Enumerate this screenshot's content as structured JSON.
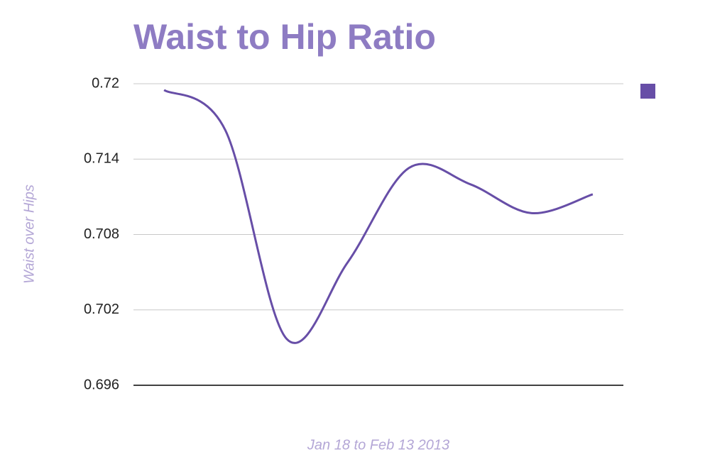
{
  "chart_data": {
    "type": "line",
    "title": "Waist to Hip Ratio",
    "y_label": "Waist over Hips",
    "x_label": "Jan 18 to Feb 13 2013",
    "categories": [
      null,
      null,
      null,
      null,
      null,
      null,
      null,
      null
    ],
    "series": [
      {
        "color": "#674ea7",
        "values": [
          0.7195,
          0.7163,
          0.6997,
          0.7058,
          0.7133,
          0.712,
          0.7097,
          0.7112
        ]
      }
    ],
    "ylim": [
      0.696,
      0.72
    ],
    "yticks": [
      0.696,
      0.702,
      0.708,
      0.714,
      0.72
    ],
    "grid": true,
    "legend": "right"
  }
}
